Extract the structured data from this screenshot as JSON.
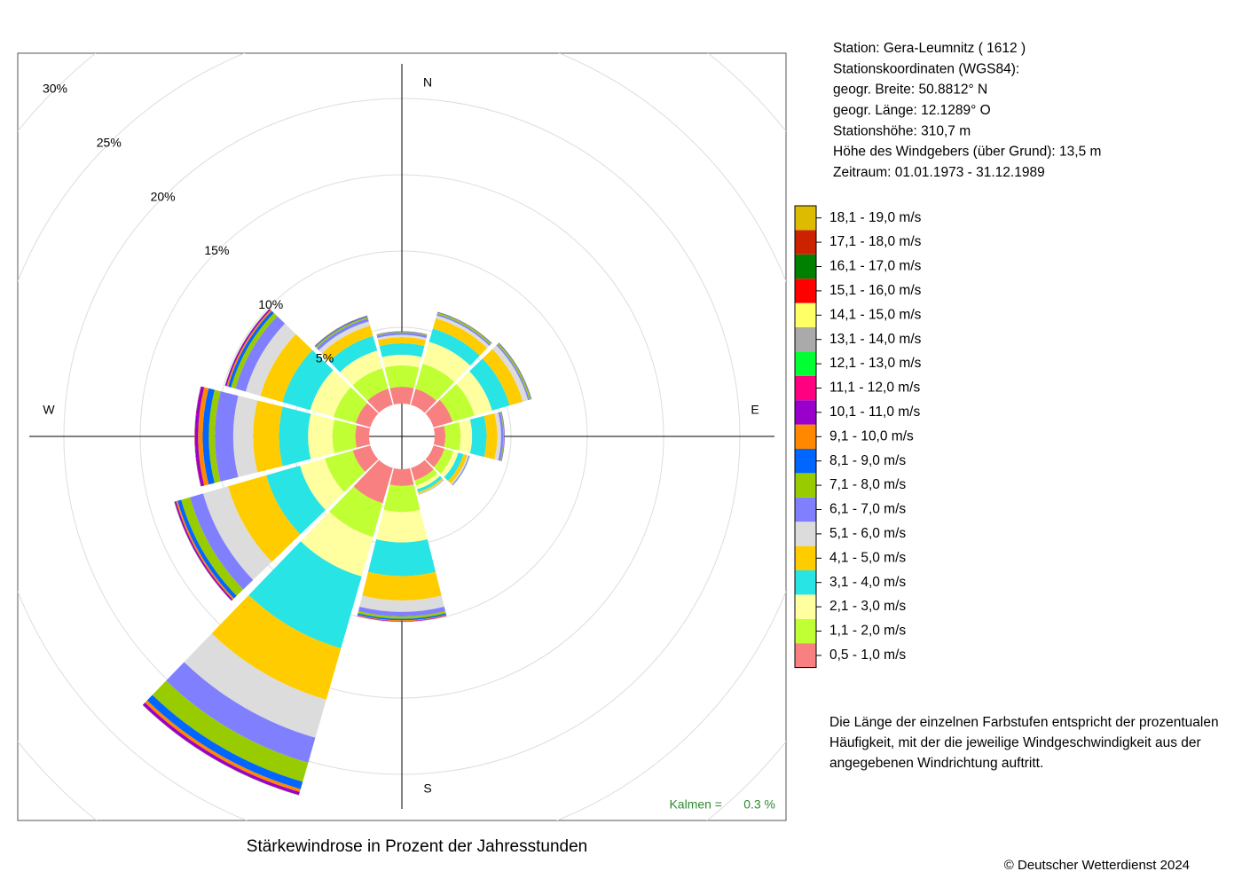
{
  "chart_data": {
    "type": "windrose",
    "title": "Stärkewindrose in Prozent der Jahresstunden",
    "categories": [
      "N",
      null,
      null,
      "E",
      null,
      null,
      "S",
      null,
      null,
      "W",
      null,
      null
    ],
    "rlim": [
      0,
      30
    ],
    "rticks": [
      {
        "value": 5,
        "label": "5%"
      },
      {
        "value": 10,
        "label": "10%"
      },
      {
        "value": 15,
        "label": "15%"
      },
      {
        "value": 20,
        "label": "20%"
      },
      {
        "value": 25,
        "label": "25%"
      },
      {
        "value": 30,
        "label": "30%"
      }
    ],
    "calm": {
      "label": "Kalmen  =",
      "value": 0.3,
      "value_label": "0.3 %"
    },
    "series": [
      {
        "name": "0,5 - 1,0 m/s",
        "color": "#f88080",
        "values": [
          1.1,
          1.1,
          1.3,
          0.7,
          0.75,
          0.85,
          1.1,
          2.4,
          1.2,
          0.9,
          1.0,
          1.1
        ]
      },
      {
        "name": "1,1 - 2,0 m/s",
        "color": "#bfff33",
        "values": [
          1.4,
          1.7,
          1.5,
          1.0,
          0.6,
          0.35,
          1.7,
          2.3,
          1.9,
          1.5,
          1.5,
          1.4
        ]
      },
      {
        "name": "2,1 - 3,0 m/s",
        "color": "#ffffa0",
        "values": [
          0.7,
          1.5,
          1.2,
          0.75,
          0.35,
          0.25,
          2.0,
          2.7,
          1.7,
          1.6,
          1.6,
          1.2
        ]
      },
      {
        "name": "3,1 - 4,0 m/s",
        "color": "#28e4e4",
        "values": [
          0.75,
          0.9,
          1.2,
          0.95,
          0.35,
          0.2,
          2.2,
          4.9,
          2.3,
          1.9,
          1.9,
          1.0
        ]
      },
      {
        "name": "4,1 - 5,0 m/s",
        "color": "#ffcc00",
        "values": [
          0.4,
          0.7,
          0.9,
          0.7,
          0.25,
          0.1,
          1.6,
          3.5,
          2.6,
          1.7,
          1.5,
          0.7
        ]
      },
      {
        "name": "5,1 - 6,0 m/s",
        "color": "#dcdcdc",
        "values": [
          0.15,
          0.2,
          0.35,
          0.25,
          0.1,
          0.05,
          0.75,
          2.6,
          1.7,
          1.3,
          1.0,
          0.3
        ]
      },
      {
        "name": "6,1 - 7,0 m/s",
        "color": "#8080ff",
        "values": [
          0.15,
          0.1,
          0.1,
          0.15,
          0.05,
          0.02,
          0.3,
          1.7,
          0.9,
          1.2,
          0.7,
          0.2
        ]
      },
      {
        "name": "7,1 - 8,0 m/s",
        "color": "#99cc00",
        "values": [
          0.05,
          0.1,
          0.1,
          0.05,
          0.02,
          0.01,
          0.15,
          1.3,
          0.6,
          0.4,
          0.3,
          0.1
        ]
      },
      {
        "name": "8,1 - 9,0 m/s",
        "color": "#0066ff",
        "values": [
          0.02,
          0.03,
          0.03,
          0.02,
          0.01,
          0,
          0.1,
          0.5,
          0.25,
          0.4,
          0.2,
          0.05
        ]
      },
      {
        "name": "9,1 - 10,0 m/s",
        "color": "#ff8800",
        "values": [
          0.01,
          0.01,
          0.01,
          0.01,
          0,
          0,
          0.05,
          0.2,
          0.1,
          0.3,
          0.1,
          0.02
        ]
      },
      {
        "name": "10,1 - 11,0 m/s",
        "color": "#9900cc",
        "values": [
          0.01,
          0.01,
          0.01,
          0.01,
          0,
          0,
          0.03,
          0.2,
          0.1,
          0.2,
          0.1,
          0.02
        ]
      },
      {
        "name": "11,1 - 12,0 m/s",
        "color": "#ff0080",
        "values": [
          0,
          0,
          0,
          0,
          0,
          0,
          0.01,
          0.02,
          0.02,
          0.03,
          0.01,
          0
        ]
      },
      {
        "name": "12,1 - 13,0 m/s",
        "color": "#00ff33",
        "values": [
          0,
          0,
          0,
          0,
          0,
          0,
          0,
          0.01,
          0.01,
          0.01,
          0.01,
          0
        ]
      },
      {
        "name": "13,1 - 14,0 m/s",
        "color": "#aaaaaa",
        "values": [
          0,
          0,
          0,
          0,
          0,
          0,
          0,
          0,
          0,
          0,
          0,
          0
        ]
      },
      {
        "name": "14,1 - 15,0 m/s",
        "color": "#ffff66",
        "values": [
          0,
          0,
          0,
          0,
          0,
          0,
          0,
          0,
          0,
          0,
          0,
          0
        ]
      },
      {
        "name": "15,1 - 16,0 m/s",
        "color": "#ff0000",
        "values": [
          0,
          0,
          0,
          0,
          0,
          0,
          0,
          0,
          0,
          0,
          0,
          0
        ]
      },
      {
        "name": "16,1 - 17,0 m/s",
        "color": "#008000",
        "values": [
          0,
          0,
          0,
          0,
          0,
          0,
          0,
          0,
          0,
          0,
          0,
          0
        ]
      },
      {
        "name": "17,1 - 18,0 m/s",
        "color": "#cc2200",
        "values": [
          0,
          0,
          0,
          0,
          0,
          0,
          0,
          0,
          0,
          0,
          0,
          0
        ]
      },
      {
        "name": "18,1 - 19,0 m/s",
        "color": "#ddbb00",
        "values": [
          0,
          0,
          0,
          0,
          0,
          0,
          0,
          0,
          0,
          0,
          0,
          0
        ]
      }
    ]
  },
  "info": [
    "Station:  Gera-Leumnitz  ( 1612 )",
    "Stationskoordinaten (WGS84):",
    "geogr. Breite: 50.8812° N",
    "geogr. Länge: 12.1289° O",
    "Stationshöhe: 310,7 m",
    "Höhe des Windgebers (über Grund): 13,5 m",
    "Zeitraum: 01.01.1973 - 31.12.1989"
  ],
  "note": [
    "Die Länge der einzelnen Farbstufen entspricht der prozentualen",
    "Häufigkeit, mit der die jeweilige Windgeschwindigkeit aus der",
    "angegebenen Windrichtung auftritt."
  ],
  "copyright": "© Deutscher Wetterdienst  2024"
}
